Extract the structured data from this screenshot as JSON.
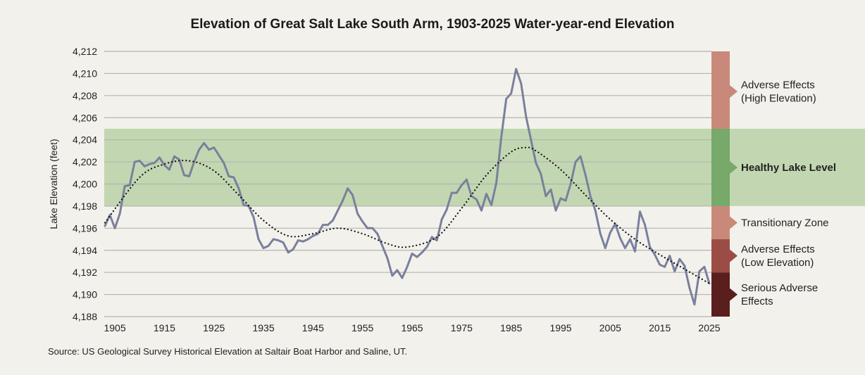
{
  "chart_data": {
    "type": "line",
    "title": "Elevation of Great Salt Lake South Arm, 1903-2025 Water-year-end Elevation",
    "ylabel": "Lake Elevation (feet)",
    "xlabel": "",
    "ylim": [
      4188,
      4212
    ],
    "xlim": [
      1903,
      2025
    ],
    "grid": true,
    "yticks": [
      "4,188",
      "4,190",
      "4,192",
      "4,194",
      "4,196",
      "4,198",
      "4,200",
      "4,202",
      "4,204",
      "4,206",
      "4,208",
      "4,210",
      "4,212"
    ],
    "xticks": [
      "1905",
      "1915",
      "1925",
      "1935",
      "1945",
      "1955",
      "1965",
      "1975",
      "1985",
      "1995",
      "2005",
      "2015",
      "2025"
    ],
    "series": [
      {
        "style": "solid",
        "color": "#7a809c",
        "x_start": 1903,
        "values": [
          4196.2,
          4197.2,
          4196.0,
          4197.3,
          4199.8,
          4199.9,
          4202.0,
          4202.1,
          4201.6,
          4201.8,
          4201.9,
          4202.4,
          4201.7,
          4201.3,
          4202.5,
          4202.2,
          4200.8,
          4200.7,
          4202.0,
          4203.1,
          4203.7,
          4203.1,
          4203.3,
          4202.6,
          4201.9,
          4200.7,
          4200.6,
          4199.6,
          4198.1,
          4198.0,
          4197.0,
          4195.0,
          4194.2,
          4194.4,
          4195.0,
          4194.9,
          4194.7,
          4193.8,
          4194.1,
          4194.9,
          4194.8,
          4195.0,
          4195.3,
          4195.5,
          4196.3,
          4196.3,
          4196.7,
          4197.6,
          4198.5,
          4199.6,
          4199.0,
          4197.3,
          4196.6,
          4196.0,
          4196.0,
          4195.5,
          4194.4,
          4193.3,
          4191.7,
          4192.2,
          4191.5,
          4192.5,
          4193.7,
          4193.4,
          4193.8,
          4194.3,
          4195.2,
          4194.9,
          4196.8,
          4197.7,
          4199.2,
          4199.2,
          4199.9,
          4200.4,
          4198.9,
          4198.6,
          4197.6,
          4199.1,
          4198.1,
          4200.1,
          4204.2,
          4207.7,
          4208.2,
          4210.4,
          4209.1,
          4206.1,
          4204.0,
          4201.9,
          4200.9,
          4198.9,
          4199.5,
          4197.6,
          4198.7,
          4198.5,
          4200.0,
          4202.0,
          4202.5,
          4200.8,
          4198.9,
          4197.6,
          4195.5,
          4194.2,
          4195.6,
          4196.4,
          4195.1,
          4194.2,
          4195.0,
          4193.9,
          4197.5,
          4196.3,
          4194.3,
          4193.6,
          4192.7,
          4192.5,
          4193.5,
          4192.1,
          4193.2,
          4192.6,
          4190.6,
          4189.1,
          4192.1,
          4192.5,
          4191.0
        ]
      },
      {
        "style": "dotted",
        "color": "#111111",
        "x": [
          1903,
          1910,
          1915,
          1920,
          1925,
          1930,
          1935,
          1940,
          1945,
          1950,
          1955,
          1960,
          1964,
          1970,
          1975,
          1980,
          1985,
          1988,
          1990,
          1995,
          2000,
          2005,
          2010,
          2015,
          2020,
          2025
        ],
        "values": [
          4196.5,
          4200.6,
          4201.8,
          4202.1,
          4201.2,
          4199.0,
          4196.7,
          4195.3,
          4195.5,
          4196.0,
          4195.5,
          4194.6,
          4194.3,
          4195.2,
          4197.8,
          4200.8,
          4202.9,
          4203.3,
          4203.0,
          4201.3,
          4199.0,
          4196.8,
          4195.0,
          4193.6,
          4192.3,
          4191.0
        ]
      }
    ],
    "zones": [
      {
        "lines": [
          "Adverse Effects",
          "(High Elevation)"
        ],
        "from": 4205,
        "to": 4212,
        "color": "#c9897a",
        "bold": false
      },
      {
        "lines": [
          "Healthy Lake Level"
        ],
        "from": 4198,
        "to": 4205,
        "color": "#76a96a",
        "band_color": "#c2d7b1",
        "bold": true
      },
      {
        "lines": [
          "Transitionary Zone"
        ],
        "from": 4195,
        "to": 4198,
        "color": "#c9897a",
        "bold": false
      },
      {
        "lines": [
          "Adverse Effects",
          "(Low Elevation)"
        ],
        "from": 4192,
        "to": 4195,
        "color": "#9b4d45",
        "bold": false
      },
      {
        "lines": [
          "Serious Adverse",
          "Effects"
        ],
        "from": 4188,
        "to": 4192,
        "color": "#5b1e1e",
        "bold": false
      }
    ]
  },
  "source": "Source: US Geological Survey Historical Elevation at Saltair Boat Harbor and Saline, UT."
}
